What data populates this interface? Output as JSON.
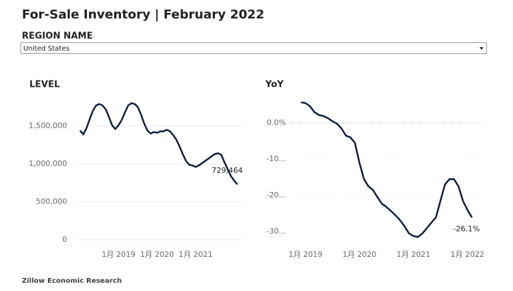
{
  "title": "For-Sale Inventory | February 2022",
  "filter": {
    "label": "REGION NAME",
    "value": "United States"
  },
  "chart_data": [
    {
      "type": "line",
      "title": "LEVEL",
      "x": [
        "2018-01",
        "2018-02",
        "2018-03",
        "2018-04",
        "2018-05",
        "2018-06",
        "2018-07",
        "2018-08",
        "2018-09",
        "2018-10",
        "2018-11",
        "2018-12",
        "2019-01",
        "2019-02",
        "2019-03",
        "2019-04",
        "2019-05",
        "2019-06",
        "2019-07",
        "2019-08",
        "2019-09",
        "2019-10",
        "2019-11",
        "2019-12",
        "2020-01",
        "2020-02",
        "2020-03",
        "2020-04",
        "2020-05",
        "2020-06",
        "2020-07",
        "2020-08",
        "2020-09",
        "2020-10",
        "2020-11",
        "2020-12",
        "2021-01",
        "2021-02",
        "2021-03",
        "2021-04",
        "2021-05",
        "2021-06",
        "2021-07",
        "2021-08",
        "2021-09",
        "2021-10",
        "2021-11",
        "2021-12",
        "2022-01",
        "2022-02"
      ],
      "series": [
        {
          "color": "#0d1b3e",
          "values": [
            1440000,
            1390000,
            1470000,
            1590000,
            1700000,
            1770000,
            1790000,
            1770000,
            1720000,
            1620000,
            1510000,
            1460000,
            1510000,
            1580000,
            1680000,
            1770000,
            1800000,
            1790000,
            1750000,
            1650000,
            1530000,
            1440000,
            1400000,
            1420000,
            1410000,
            1430000,
            1430000,
            1450000,
            1430000,
            1380000,
            1320000,
            1230000,
            1130000,
            1040000,
            990000,
            980000,
            960000,
            980000,
            1010000,
            1040000,
            1070000,
            1100000,
            1130000,
            1140000,
            1120000,
            1020000,
            930000,
            840000,
            780000,
            729464
          ],
          "value_labels": [
            null,
            null,
            null,
            null,
            null,
            null,
            null,
            null,
            null,
            null,
            null,
            null,
            null,
            null,
            null,
            null,
            null,
            null,
            null,
            null,
            null,
            null,
            null,
            null,
            null,
            null,
            null,
            null,
            null,
            null,
            null,
            null,
            null,
            null,
            null,
            null,
            null,
            null,
            null,
            null,
            null,
            null,
            null,
            null,
            null,
            null,
            null,
            null,
            null,
            "729,464"
          ]
        }
      ],
      "xlim": [
        "2018-01",
        "2022-02"
      ],
      "xticks": [
        {
          "value": "2019-01",
          "label": "1月 2019"
        },
        {
          "value": "2020-01",
          "label": "1月 2020"
        },
        {
          "value": "2021-01",
          "label": "1月 2021"
        }
      ],
      "ylim": [
        0,
        1900000
      ],
      "yticks": [
        0,
        {
          "value": 500000,
          "label": "500,000"
        },
        {
          "value": 1000000,
          "label": "1,000,000"
        },
        {
          "value": 1500000,
          "label": "1,500,000"
        }
      ],
      "grid": true
    },
    {
      "type": "line",
      "title": "YoY",
      "x": [
        "2018-12",
        "2019-01",
        "2019-02",
        "2019-03",
        "2019-04",
        "2019-05",
        "2019-06",
        "2019-07",
        "2019-08",
        "2019-09",
        "2019-10",
        "2019-11",
        "2019-12",
        "2020-01",
        "2020-02",
        "2020-03",
        "2020-04",
        "2020-05",
        "2020-06",
        "2020-07",
        "2020-08",
        "2020-09",
        "2020-10",
        "2020-11",
        "2020-12",
        "2021-01",
        "2021-02",
        "2021-03",
        "2021-04",
        "2021-05",
        "2021-06",
        "2021-07",
        "2021-08",
        "2021-09",
        "2021-10",
        "2021-11",
        "2021-12",
        "2022-01",
        "2022-02"
      ],
      "series": [
        {
          "color": "#0d1b3e",
          "values": [
            5.7,
            5.5,
            4.6,
            3.0,
            2.2,
            1.9,
            1.3,
            0.5,
            -0.2,
            -1.5,
            -3.5,
            -4.0,
            -5.5,
            -11.0,
            -15.5,
            -17.5,
            -18.5,
            -20.5,
            -22.3,
            -23.2,
            -24.3,
            -25.5,
            -26.8,
            -28.5,
            -30.5,
            -31.2,
            -31.5,
            -30.5,
            -29.0,
            -27.5,
            -26.0,
            -21.5,
            -17.0,
            -15.5,
            -15.5,
            -17.5,
            -21.5,
            -24.0,
            -26.1
          ],
          "value_labels": [
            null,
            null,
            null,
            null,
            null,
            null,
            null,
            null,
            null,
            null,
            null,
            null,
            null,
            null,
            null,
            null,
            null,
            null,
            null,
            null,
            null,
            null,
            null,
            null,
            null,
            null,
            null,
            null,
            null,
            null,
            null,
            null,
            null,
            null,
            null,
            null,
            null,
            null,
            "-26.1%"
          ]
        }
      ],
      "xlim": [
        "2018-12",
        "2022-02"
      ],
      "xticks": [
        {
          "value": "2019-01",
          "label": "1月 2019"
        },
        {
          "value": "2020-01",
          "label": "1月 2020"
        },
        {
          "value": "2021-01",
          "label": "1月 2021"
        },
        {
          "value": "2022-01",
          "label": "1月 2022"
        }
      ],
      "ylim": [
        -33,
        8
      ],
      "yticks": [
        {
          "value": 0,
          "label": "0.0%"
        },
        {
          "value": -10,
          "label": "-10..."
        },
        {
          "value": -20,
          "label": "-20..."
        },
        {
          "value": -30,
          "label": "-30..."
        }
      ],
      "grid": true
    }
  ],
  "footer": "Zillow Economic Research"
}
